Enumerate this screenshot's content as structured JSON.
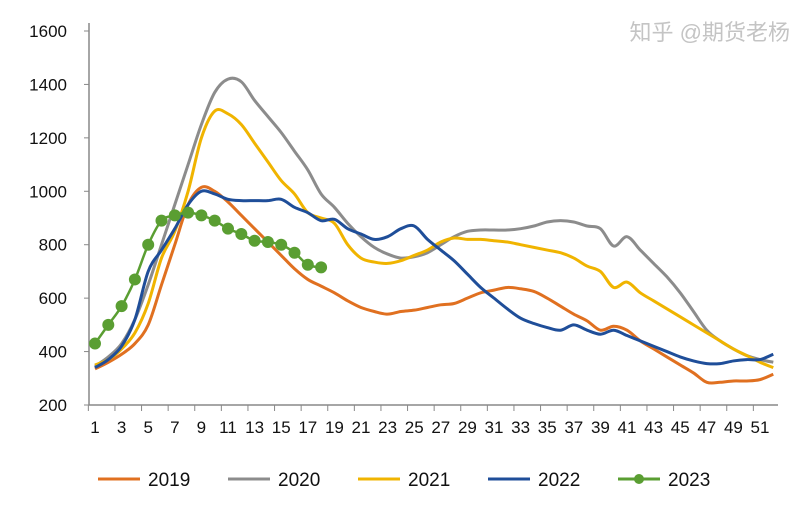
{
  "chart_data": {
    "type": "line",
    "title": "",
    "xlabel": "",
    "ylabel": "",
    "ylim": [
      200,
      1600
    ],
    "yticks": [
      200,
      400,
      600,
      800,
      1000,
      1200,
      1400,
      1600
    ],
    "xlim": [
      1,
      52
    ],
    "xtick_labels": [
      "1",
      "3",
      "5",
      "7",
      "9",
      "11",
      "13",
      "15",
      "17",
      "19",
      "21",
      "23",
      "25",
      "27",
      "29",
      "31",
      "33",
      "35",
      "37",
      "39",
      "41",
      "43",
      "45",
      "47",
      "49",
      "51"
    ],
    "grid": false,
    "legend_position": "bottom",
    "series": [
      {
        "name": "2019",
        "color": "#E07020",
        "marker": false,
        "values": [
          335,
          360,
          390,
          430,
          500,
          650,
          800,
          950,
          1015,
          1000,
          960,
          910,
          860,
          810,
          760,
          710,
          670,
          645,
          620,
          590,
          565,
          550,
          540,
          550,
          555,
          565,
          575,
          580,
          600,
          620,
          630,
          640,
          635,
          625,
          600,
          570,
          540,
          515,
          480,
          495,
          480,
          440,
          410,
          380,
          350,
          320,
          285,
          285,
          290,
          290,
          295,
          315
        ]
      },
      {
        "name": "2020",
        "color": "#8C8C8C",
        "marker": false,
        "values": [
          345,
          380,
          430,
          520,
          650,
          800,
          950,
          1100,
          1250,
          1370,
          1420,
          1410,
          1340,
          1280,
          1220,
          1150,
          1080,
          990,
          940,
          880,
          830,
          790,
          765,
          750,
          755,
          770,
          800,
          830,
          850,
          855,
          855,
          855,
          860,
          870,
          885,
          890,
          885,
          870,
          860,
          795,
          830,
          780,
          730,
          680,
          620,
          550,
          480,
          440,
          410,
          385,
          370,
          360
        ]
      },
      {
        "name": "2021",
        "color": "#F0B400",
        "marker": false,
        "values": [
          350,
          370,
          410,
          470,
          580,
          750,
          850,
          1000,
          1200,
          1300,
          1290,
          1250,
          1180,
          1110,
          1040,
          990,
          920,
          900,
          880,
          800,
          750,
          735,
          730,
          740,
          760,
          780,
          810,
          825,
          820,
          820,
          815,
          810,
          800,
          790,
          780,
          770,
          750,
          720,
          700,
          640,
          660,
          620,
          590,
          560,
          530,
          500,
          470,
          440,
          410,
          385,
          360,
          340
        ]
      },
      {
        "name": "2022",
        "color": "#1F4E99",
        "marker": false,
        "values": [
          340,
          370,
          420,
          520,
          700,
          780,
          860,
          950,
          1000,
          990,
          970,
          965,
          965,
          965,
          970,
          940,
          920,
          890,
          895,
          860,
          840,
          820,
          830,
          860,
          870,
          820,
          780,
          740,
          690,
          640,
          600,
          560,
          525,
          505,
          490,
          480,
          500,
          480,
          465,
          480,
          460,
          440,
          420,
          400,
          380,
          365,
          355,
          355,
          365,
          370,
          370,
          390
        ]
      },
      {
        "name": "2023",
        "color": "#5A9E32",
        "marker": true,
        "values": [
          430,
          500,
          570,
          670,
          800,
          890,
          910,
          920,
          910,
          890,
          860,
          840,
          815,
          810,
          800,
          770,
          725,
          715
        ]
      }
    ]
  },
  "watermark": "知乎 @期货老杨"
}
